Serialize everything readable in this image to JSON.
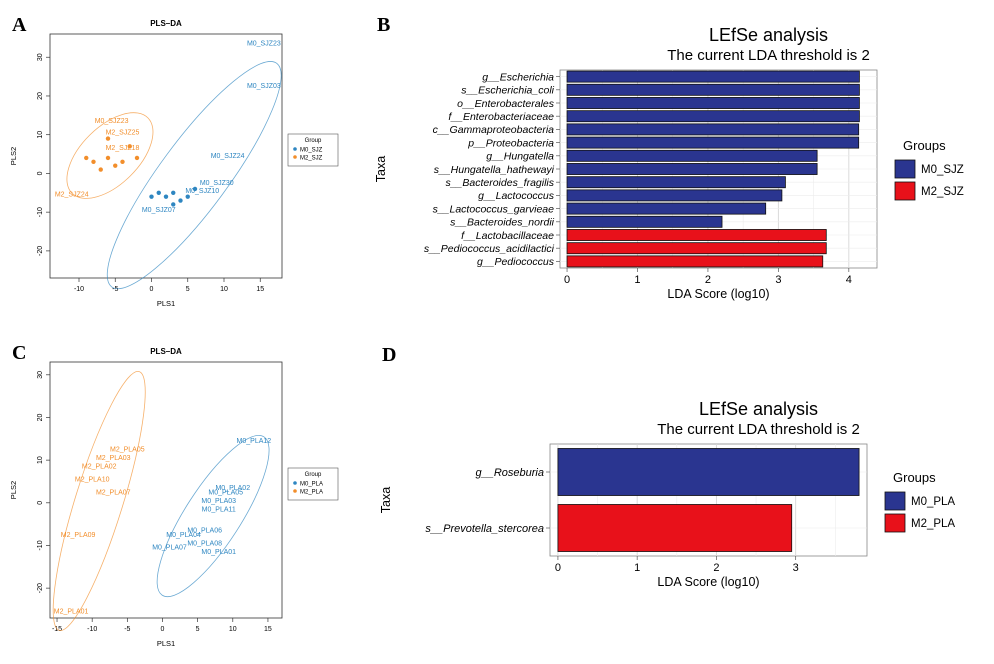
{
  "panels": {
    "A": {
      "letter": "A"
    },
    "B": {
      "letter": "B"
    },
    "C": {
      "letter": "C"
    },
    "D": {
      "letter": "D"
    }
  },
  "colors": {
    "blue": "#2E86C1",
    "orange": "#F28E2B",
    "navy": "#2A3590",
    "red": "#E8111A"
  },
  "chart_data": [
    {
      "id": "A",
      "type": "scatter",
      "title": "PLS–DA",
      "xlabel": "PLS1",
      "ylabel": "PLS2",
      "xlim": [
        -14,
        18
      ],
      "ylim": [
        -27,
        36
      ],
      "xticks": [
        -10,
        -5,
        0,
        5,
        10,
        15
      ],
      "yticks": [
        -20,
        -10,
        0,
        10,
        20,
        30
      ],
      "legend": {
        "title": "Group",
        "position": "right",
        "items": [
          "M0_SJZ",
          "M2_SJZ"
        ]
      },
      "series": [
        {
          "name": "M0_SJZ",
          "color": "#2E86C1",
          "points": [
            {
              "label": "M0_SJZ23",
              "x": 15.5,
              "y": 33
            },
            {
              "label": "M0_SJZ03",
              "x": 15.5,
              "y": 22
            },
            {
              "label": "M0_SJZ24",
              "x": 10.5,
              "y": 4
            },
            {
              "label": "M0_SJZ30",
              "x": 9,
              "y": -3
            },
            {
              "label": "M0_SJZ10",
              "x": 7,
              "y": -5
            },
            {
              "label": "M0_SJZ07",
              "x": 1,
              "y": -10
            },
            {
              "label": "",
              "x": 0,
              "y": -6
            },
            {
              "label": "",
              "x": 1,
              "y": -5
            },
            {
              "label": "",
              "x": 2,
              "y": -6
            },
            {
              "label": "",
              "x": 3,
              "y": -5
            },
            {
              "label": "",
              "x": 4,
              "y": -7
            },
            {
              "label": "",
              "x": 5,
              "y": -6
            },
            {
              "label": "",
              "x": 3,
              "y": -8
            },
            {
              "label": "",
              "x": 6,
              "y": -4
            }
          ]
        },
        {
          "name": "M2_SJZ",
          "color": "#F28E2B",
          "points": [
            {
              "label": "M0_SJZ23",
              "x": -5.5,
              "y": 13
            },
            {
              "label": "M2_SJZ25",
              "x": -4,
              "y": 10
            },
            {
              "label": "M2_SJZ18",
              "x": -4,
              "y": 6
            },
            {
              "label": "M2_SJZ24",
              "x": -11,
              "y": -6
            },
            {
              "label": "",
              "x": -8,
              "y": 3
            },
            {
              "label": "",
              "x": -6,
              "y": 4
            },
            {
              "label": "",
              "x": -4,
              "y": 3
            },
            {
              "label": "",
              "x": -2,
              "y": 4
            },
            {
              "label": "",
              "x": -7,
              "y": 1
            },
            {
              "label": "",
              "x": -5,
              "y": 2
            },
            {
              "label": "",
              "x": -9,
              "y": 4
            },
            {
              "label": "",
              "x": -3,
              "y": 7
            },
            {
              "label": "",
              "x": -6,
              "y": 9
            }
          ]
        }
      ]
    },
    {
      "id": "B",
      "type": "bar",
      "orientation": "horizontal",
      "title": "LEfSe analysis",
      "subtitle": "The current LDA threshold is 2",
      "xlabel": "LDA Score (log10)",
      "ylabel": "Taxa",
      "xlim": [
        -0.1,
        4.4
      ],
      "xticks": [
        0,
        1,
        2,
        3,
        4
      ],
      "legend": {
        "title": "Groups",
        "position": "right",
        "items": [
          {
            "name": "M0_SJZ",
            "color": "#2A3590"
          },
          {
            "name": "M2_SJZ",
            "color": "#E8111A"
          }
        ]
      },
      "bars": [
        {
          "label": "g__Escherichia",
          "value": 4.15,
          "group": "M0_SJZ"
        },
        {
          "label": "s__Escherichia_coli",
          "value": 4.15,
          "group": "M0_SJZ"
        },
        {
          "label": "o__Enterobacterales",
          "value": 4.15,
          "group": "M0_SJZ"
        },
        {
          "label": "f__Enterobacteriaceae",
          "value": 4.15,
          "group": "M0_SJZ"
        },
        {
          "label": "c__Gammaproteobacteria",
          "value": 4.14,
          "group": "M0_SJZ"
        },
        {
          "label": "p__Proteobacteria",
          "value": 4.14,
          "group": "M0_SJZ"
        },
        {
          "label": "g__Hungatella",
          "value": 3.55,
          "group": "M0_SJZ"
        },
        {
          "label": "s__Hungatella_hathewayi",
          "value": 3.55,
          "group": "M0_SJZ"
        },
        {
          "label": "s__Bacteroides_fragilis",
          "value": 3.1,
          "group": "M0_SJZ"
        },
        {
          "label": "g__Lactococcus",
          "value": 3.05,
          "group": "M0_SJZ"
        },
        {
          "label": "s__Lactococcus_garvieae",
          "value": 2.82,
          "group": "M0_SJZ"
        },
        {
          "label": "s__Bacteroides_nordii",
          "value": 2.2,
          "group": "M0_SJZ"
        },
        {
          "label": "f__Lactobacillaceae",
          "value": 3.68,
          "group": "M2_SJZ"
        },
        {
          "label": "s__Pediococcus_acidilactici",
          "value": 3.68,
          "group": "M2_SJZ"
        },
        {
          "label": "g__Pediococcus",
          "value": 3.63,
          "group": "M2_SJZ"
        }
      ]
    },
    {
      "id": "C",
      "type": "scatter",
      "title": "PLS–DA",
      "xlabel": "PLS1",
      "ylabel": "PLS2",
      "xlim": [
        -16,
        17
      ],
      "ylim": [
        -27,
        33
      ],
      "xticks": [
        -15,
        -10,
        -5,
        0,
        5,
        10,
        15
      ],
      "yticks": [
        -20,
        -10,
        0,
        10,
        20,
        30
      ],
      "legend": {
        "title": "Group",
        "position": "right",
        "items": [
          "M0_PLA",
          "M2_PLA"
        ]
      },
      "series": [
        {
          "name": "M0_PLA",
          "color": "#2E86C1",
          "points": [
            {
              "label": "M0_PLA12",
              "x": 13,
              "y": 14
            },
            {
              "label": "M0_PLA02",
              "x": 10,
              "y": 3
            },
            {
              "label": "M0_PLA05",
              "x": 9,
              "y": 2
            },
            {
              "label": "M0_PLA11",
              "x": 8,
              "y": -2
            },
            {
              "label": "M0_PLA03",
              "x": 8,
              "y": 0
            },
            {
              "label": "M0_PLA06",
              "x": 6,
              "y": -7
            },
            {
              "label": "M0_PLA04",
              "x": 3,
              "y": -8
            },
            {
              "label": "M0_PLA08",
              "x": 6,
              "y": -10
            },
            {
              "label": "M0_PLA07",
              "x": 1,
              "y": -11
            },
            {
              "label": "M0_PLA01",
              "x": 8,
              "y": -12
            }
          ]
        },
        {
          "name": "M2_PLA",
          "color": "#F28E2B",
          "points": [
            {
              "label": "M2_PLA05",
              "x": -5,
              "y": 12
            },
            {
              "label": "M2_PLA03",
              "x": -7,
              "y": 10
            },
            {
              "label": "M2_PLA02",
              "x": -9,
              "y": 8
            },
            {
              "label": "M2_PLA10",
              "x": -10,
              "y": 5
            },
            {
              "label": "M2_PLA07",
              "x": -7,
              "y": 2
            },
            {
              "label": "M2_PLA09",
              "x": -12,
              "y": -8
            },
            {
              "label": "M2_PLA01",
              "x": -13,
              "y": -26
            }
          ]
        }
      ]
    },
    {
      "id": "D",
      "type": "bar",
      "orientation": "horizontal",
      "title": "LEfSe analysis",
      "subtitle": "The current LDA threshold is 2",
      "xlabel": "LDA Score (log10)",
      "ylabel": "Taxa",
      "xlim": [
        -0.1,
        3.9
      ],
      "xticks": [
        0,
        1,
        2,
        3
      ],
      "legend": {
        "title": "Groups",
        "position": "right",
        "items": [
          {
            "name": "M0_PLA",
            "color": "#2A3590"
          },
          {
            "name": "M2_PLA",
            "color": "#E8111A"
          }
        ]
      },
      "bars": [
        {
          "label": "g__Roseburia",
          "value": 3.8,
          "group": "M0_PLA"
        },
        {
          "label": "s__Prevotella_stercorea",
          "value": 2.95,
          "group": "M2_PLA"
        }
      ]
    }
  ]
}
